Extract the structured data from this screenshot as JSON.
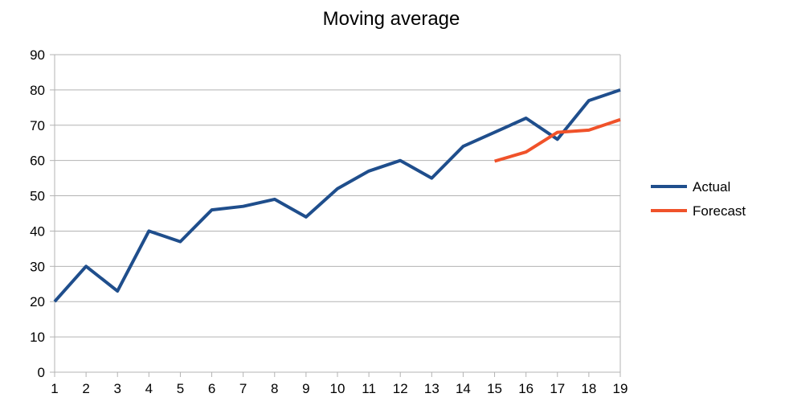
{
  "chart_data": {
    "type": "line",
    "title": "Moving average",
    "xlabel": "",
    "ylabel": "",
    "x": [
      1,
      2,
      3,
      4,
      5,
      6,
      7,
      8,
      9,
      10,
      11,
      12,
      13,
      14,
      15,
      16,
      17,
      18,
      19
    ],
    "xlim": [
      1,
      19
    ],
    "ylim": [
      0,
      90
    ],
    "yticks": [
      0,
      10,
      20,
      30,
      40,
      50,
      60,
      70,
      80,
      90
    ],
    "grid": true,
    "legend": "right",
    "series": [
      {
        "name": "Actual",
        "color": "#1f4e8c",
        "values": [
          20,
          30,
          23,
          40,
          37,
          46,
          47,
          49,
          44,
          52,
          57,
          60,
          55,
          64,
          68,
          72,
          66,
          77,
          80
        ]
      },
      {
        "name": "Forecast",
        "color": "#f0522a",
        "values": [
          null,
          null,
          null,
          null,
          null,
          null,
          null,
          null,
          null,
          null,
          null,
          null,
          null,
          null,
          59.8,
          62.4,
          68,
          68.6,
          71.6
        ]
      }
    ]
  }
}
